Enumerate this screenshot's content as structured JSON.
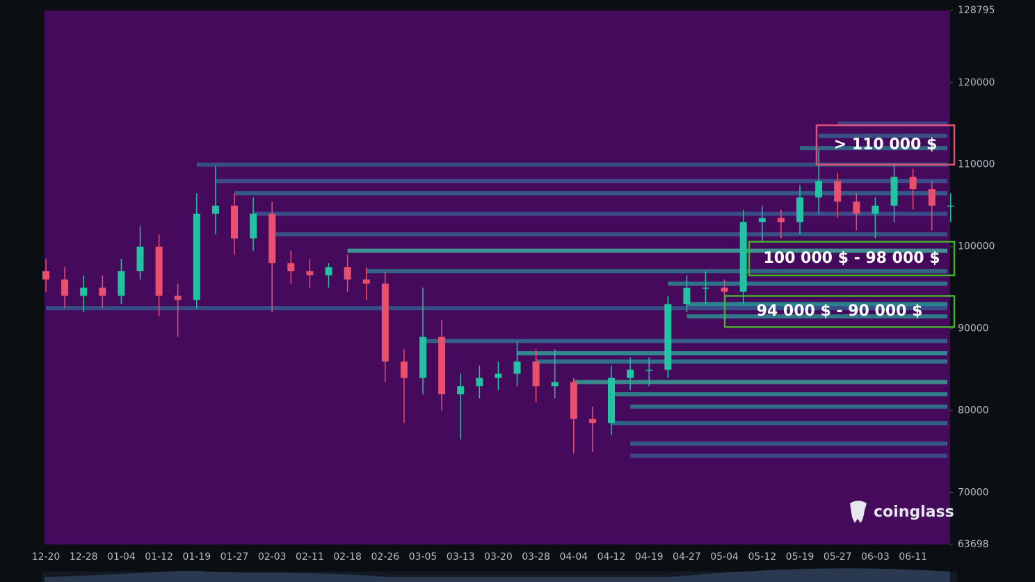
{
  "chart_data": {
    "type": "candlestick",
    "categories": [
      "12-20",
      null,
      "12-28",
      null,
      "01-04",
      null,
      "01-12",
      null,
      "01-19",
      null,
      "01-27",
      null,
      "02-03",
      null,
      "02-11",
      null,
      "02-18",
      null,
      "02-26",
      null,
      "03-05",
      null,
      "03-13",
      null,
      "03-20",
      null,
      "03-28",
      null,
      "04-04",
      null,
      "04-12",
      null,
      "04-19",
      null,
      "04-27",
      null,
      "05-04",
      null,
      "05-12",
      null,
      "05-19",
      null,
      "05-27",
      null,
      "06-03",
      null,
      "06-11",
      null,
      null
    ],
    "open": [
      97000,
      96000,
      94000,
      95000,
      94000,
      97000,
      100000,
      94000,
      93500,
      104000,
      105000,
      101000,
      104000,
      98000,
      97000,
      96500,
      97500,
      96000,
      95500,
      86000,
      84000,
      89000,
      82000,
      83000,
      84000,
      84500,
      86000,
      83000,
      83500,
      79000,
      78500,
      84000,
      85000,
      85000,
      93000,
      95000,
      95000,
      94500,
      103000,
      103500,
      103000,
      106000,
      108000,
      105500,
      104000,
      105000,
      108500,
      107000,
      105000
    ],
    "high": [
      98500,
      97500,
      96500,
      96500,
      98500,
      102500,
      101500,
      95500,
      106500,
      109800,
      106500,
      106000,
      105500,
      99500,
      98500,
      98000,
      99000,
      97500,
      97000,
      87500,
      95000,
      91000,
      84500,
      85500,
      86000,
      88500,
      87500,
      87500,
      84000,
      80500,
      85500,
      86500,
      86500,
      94000,
      96500,
      97000,
      96000,
      104500,
      105000,
      104500,
      107500,
      111800,
      109000,
      106500,
      106000,
      110000,
      109500,
      108000,
      106500
    ],
    "low": [
      94500,
      92500,
      92000,
      92500,
      93000,
      96000,
      91500,
      89000,
      92500,
      101500,
      99000,
      99500,
      92000,
      95500,
      95000,
      95000,
      94500,
      93500,
      83500,
      78500,
      82000,
      80000,
      76500,
      81500,
      82500,
      83000,
      81000,
      81500,
      74800,
      75000,
      77000,
      82500,
      83000,
      84000,
      92000,
      93000,
      92500,
      93000,
      100500,
      101000,
      101500,
      104000,
      103500,
      102000,
      101000,
      103000,
      104500,
      102000,
      103000
    ],
    "close": [
      96000,
      94000,
      95000,
      94000,
      97000,
      100000,
      94000,
      93500,
      104000,
      105000,
      101000,
      104000,
      98000,
      97000,
      96500,
      97500,
      96000,
      95500,
      86000,
      84000,
      89000,
      82000,
      83000,
      84000,
      84500,
      86000,
      83000,
      83500,
      79000,
      78500,
      84000,
      85000,
      85000,
      93000,
      95000,
      95000,
      94500,
      103000,
      103500,
      103000,
      106000,
      108000,
      105500,
      104000,
      105000,
      108500,
      107000,
      105000,
      105000
    ],
    "up_color": "#22c3a0",
    "down_color": "#e8506e",
    "ylim": [
      63698,
      128795
    ],
    "yticks": [
      63698,
      70000,
      80000,
      90000,
      100000,
      110000,
      120000,
      128795
    ],
    "levels": [
      {
        "price": 115000,
        "from": 42,
        "color": "#3d4f8f"
      },
      {
        "price": 113500,
        "from": 41,
        "color": "#34648f"
      },
      {
        "price": 112000,
        "from": 40,
        "color": "#2f7a90"
      },
      {
        "price": 110000,
        "from": 8,
        "color": "#35608f"
      },
      {
        "price": 108000,
        "from": 9,
        "color": "#3a5c95"
      },
      {
        "price": 106500,
        "from": 10,
        "color": "#2f6e92"
      },
      {
        "price": 104000,
        "from": 11,
        "color": "#3a5a95"
      },
      {
        "price": 101500,
        "from": 12,
        "color": "#34628f"
      },
      {
        "price": 99500,
        "from": 16,
        "color": "#3fb39c"
      },
      {
        "price": 97000,
        "from": 17,
        "color": "#2f7a90"
      },
      {
        "price": 95500,
        "from": 33,
        "color": "#2b8a93"
      },
      {
        "price": 93000,
        "from": 34,
        "color": "#22a39a"
      },
      {
        "price": 91500,
        "from": 34,
        "color": "#2a9396"
      },
      {
        "price": 92500,
        "from": 0,
        "color": "#355d91"
      },
      {
        "price": 88500,
        "from": 20,
        "color": "#2f7391"
      },
      {
        "price": 87000,
        "from": 25,
        "color": "#2da59b"
      },
      {
        "price": 86000,
        "from": 26,
        "color": "#2a8b95"
      },
      {
        "price": 83500,
        "from": 28,
        "color": "#38a798"
      },
      {
        "price": 82000,
        "from": 30,
        "color": "#2d9896"
      },
      {
        "price": 80500,
        "from": 31,
        "color": "#2a8394"
      },
      {
        "price": 78500,
        "from": 30,
        "color": "#2e7592"
      },
      {
        "price": 76000,
        "from": 31,
        "color": "#326a91"
      },
      {
        "price": 74500,
        "from": 31,
        "color": "#3a5892"
      }
    ],
    "annotations": [
      {
        "label": "> 110 000 $",
        "low": 110000,
        "high": 114800,
        "color": "#e0507a"
      },
      {
        "label": "100 000 $ - 98 000 $",
        "low": 96500,
        "high": 100600,
        "color": "#45b02a"
      },
      {
        "label": "94 000 $ - 90 000 $",
        "low": 90200,
        "high": 94000,
        "color": "#45b02a"
      }
    ],
    "watermark": "coinglass"
  }
}
